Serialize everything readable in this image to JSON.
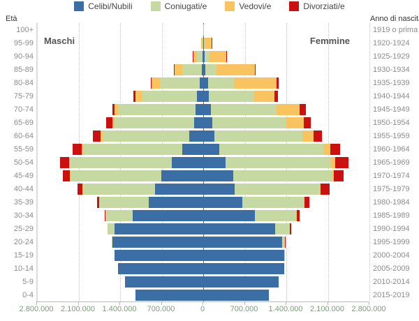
{
  "chart_data": {
    "type": "bar",
    "subtype": "population-pyramid-stacked",
    "title": "",
    "left_axis_title": "Età",
    "right_axis_title": "Anno di nascita",
    "male_side_label": "Maschi",
    "female_side_label": "Femmine",
    "x_max_per_side": 2800000,
    "x_ticks": [
      "2.800.000",
      "2.100.000",
      "1.400.000",
      "700.000",
      "0",
      "700.000",
      "1.400.000",
      "2.100.000",
      "2.800.000"
    ],
    "grid": "vertical-dotted",
    "legend_position": "top-center",
    "legend": [
      {
        "label": "Celibi/Nubili",
        "color": "#3b6ea5"
      },
      {
        "label": "Coniugati/e",
        "color": "#c6d9a3"
      },
      {
        "label": "Vedovi/e",
        "color": "#f9c45f"
      },
      {
        "label": "Divorziati/e",
        "color": "#cc1010"
      }
    ],
    "statuses_order_from_center": [
      "Celibi/Nubili",
      "Coniugati/e",
      "Vedovi/e",
      "Divorziati/e"
    ],
    "rows": [
      {
        "age": "100+",
        "birth": "1919 o prima",
        "male": [
          1000,
          1000,
          1500,
          0
        ],
        "female": [
          2000,
          2000,
          13000,
          0
        ]
      },
      {
        "age": "95-99",
        "birth": "1920-1924",
        "male": [
          4000,
          20000,
          16000,
          1000
        ],
        "female": [
          12000,
          18000,
          112000,
          3000
        ]
      },
      {
        "age": "90-94",
        "birth": "1925-1929",
        "male": [
          10000,
          100000,
          58000,
          4000
        ],
        "female": [
          28000,
          75000,
          280000,
          7000
        ]
      },
      {
        "age": "85-89",
        "birth": "1930-1934",
        "male": [
          22000,
          335000,
          125000,
          10000
        ],
        "female": [
          38000,
          190000,
          640000,
          17000
        ]
      },
      {
        "age": "80-84",
        "birth": "1935-1939",
        "male": [
          55000,
          680000,
          135000,
          12000
        ],
        "female": [
          80000,
          440000,
          720000,
          35000
        ]
      },
      {
        "age": "75-79",
        "birth": "1940-1944",
        "male": [
          110000,
          920000,
          110000,
          38000
        ],
        "female": [
          95000,
          760000,
          340000,
          60000
        ]
      },
      {
        "age": "70-74",
        "birth": "1945-1949",
        "male": [
          125000,
          1310000,
          55000,
          45000
        ],
        "female": [
          135000,
          1100000,
          390000,
          110000
        ]
      },
      {
        "age": "65-69",
        "birth": "1950-1954",
        "male": [
          155000,
          1345000,
          35000,
          100000
        ],
        "female": [
          155000,
          1245000,
          290000,
          120000
        ]
      },
      {
        "age": "60-64",
        "birth": "1955-1959",
        "male": [
          240000,
          1455000,
          38000,
          125000
        ],
        "female": [
          190000,
          1475000,
          190000,
          145000
        ]
      },
      {
        "age": "55-59",
        "birth": "1960-1964",
        "male": [
          355000,
          1670000,
          22000,
          150000
        ],
        "female": [
          270000,
          1750000,
          120000,
          170000
        ]
      },
      {
        "age": "50-54",
        "birth": "1965-1969",
        "male": [
          525000,
          1725000,
          12000,
          150000
        ],
        "female": [
          380000,
          1770000,
          75000,
          225000
        ]
      },
      {
        "age": "45-49",
        "birth": "1970-1974",
        "male": [
          710000,
          1525000,
          8000,
          120000
        ],
        "female": [
          505000,
          1660000,
          30000,
          175000
        ]
      },
      {
        "age": "40-44",
        "birth": "1975-1979",
        "male": [
          815000,
          1210000,
          5000,
          90000
        ],
        "female": [
          525000,
          1435000,
          15000,
          155000
        ]
      },
      {
        "age": "35-39",
        "birth": "1980-1984",
        "male": [
          915000,
          835000,
          3000,
          37000
        ],
        "female": [
          655000,
          1045000,
          8000,
          75000
        ]
      },
      {
        "age": "30-34",
        "birth": "1985-1989",
        "male": [
          1190000,
          460000,
          2000,
          12000
        ],
        "female": [
          875000,
          695000,
          3000,
          45000
        ]
      },
      {
        "age": "25-29",
        "birth": "1990-1994",
        "male": [
          1490000,
          120000,
          1000,
          3000
        ],
        "female": [
          1210000,
          250000,
          2000,
          20000
        ]
      },
      {
        "age": "20-24",
        "birth": "1995-1999",
        "male": [
          1530000,
          12000,
          0,
          1000
        ],
        "female": [
          1325000,
          55000,
          1000,
          2000
        ]
      },
      {
        "age": "15-19",
        "birth": "2000-2004",
        "male": [
          1495000,
          3000,
          0,
          0
        ],
        "female": [
          1360000,
          8000,
          0,
          0
        ]
      },
      {
        "age": "10-14",
        "birth": "2005-2009",
        "male": [
          1435000,
          0,
          0,
          0
        ],
        "female": [
          1365000,
          0,
          0,
          0
        ]
      },
      {
        "age": "5-9",
        "birth": "2010-2014",
        "male": [
          1320000,
          0,
          0,
          0
        ],
        "female": [
          1265000,
          0,
          0,
          0
        ]
      },
      {
        "age": "0-4",
        "birth": "2015-2019",
        "male": [
          1145000,
          0,
          0,
          0
        ],
        "female": [
          1100000,
          0,
          0,
          0
        ]
      }
    ]
  }
}
